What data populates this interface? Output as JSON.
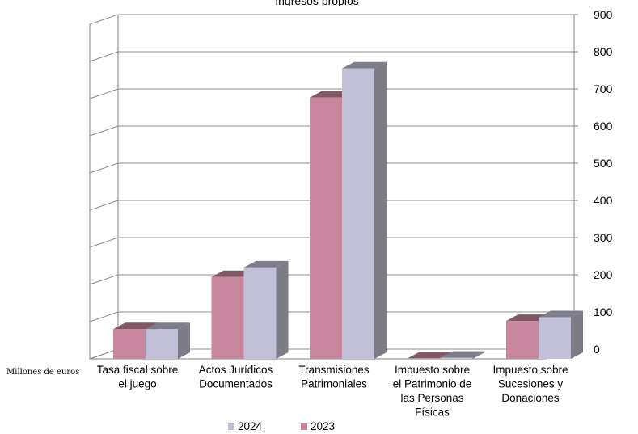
{
  "chart_data": {
    "type": "bar",
    "title": "Ingresos propios",
    "categories": [
      "Tasa fiscal sobre el juego",
      "Actos Jurídicos Documentados",
      "Transmisiones Patrimoniales",
      "Impuesto sobre el Patrimonio de las Personas Físicas",
      "Impuesto sobre Sucesiones y Donaciones"
    ],
    "category_lines": [
      [
        "Tasa fiscal sobre",
        "el juego"
      ],
      [
        "Actos Jurídicos",
        "Documentados"
      ],
      [
        "Transmisiones",
        "Patrimoniales"
      ],
      [
        "Impuesto sobre",
        "el Patrimonio de",
        "las Personas",
        "Físicas"
      ],
      [
        "Impuesto sobre",
        "Sucesiones y",
        "Donaciones"
      ]
    ],
    "series": [
      {
        "name": "2023",
        "values": [
          80,
          220,
          703,
          2,
          102
        ],
        "color": "#c8879f"
      },
      {
        "name": "2024",
        "values": [
          80,
          246,
          781,
          3,
          112
        ],
        "color": "#c2c0d8"
      }
    ],
    "ylim": [
      0,
      900
    ],
    "yticks": [
      "0",
      "100",
      "200",
      "300",
      "400",
      "500",
      "600",
      "700",
      "800",
      "900"
    ],
    "unit_label": "Millones de euros",
    "legend_position": "bottom",
    "legend_order": [
      "2024",
      "2023"
    ],
    "grid": true
  }
}
